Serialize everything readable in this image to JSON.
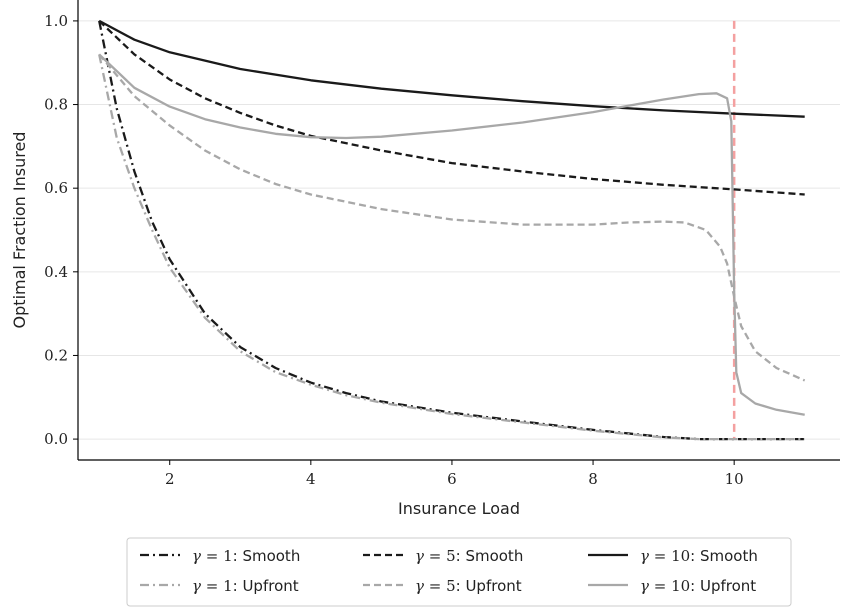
{
  "chart_data": {
    "type": "line",
    "xlabel": "Insurance Load",
    "ylabel": "Optimal Fraction Insured",
    "xlim": [
      0.7,
      11.5
    ],
    "ylim": [
      -0.05,
      1.05
    ],
    "x_ticks": [
      2,
      4,
      6,
      8,
      10
    ],
    "y_ticks": [
      0.0,
      0.2,
      0.4,
      0.6,
      0.8,
      1.0
    ],
    "x_tick_labels": [
      "2",
      "4",
      "6",
      "8",
      "10"
    ],
    "y_tick_labels": [
      "0.0",
      "0.2",
      "0.4",
      "0.6",
      "0.8",
      "1.0"
    ],
    "grid": "horizontal",
    "legend_position": "bottom, below plot",
    "reference_line": {
      "x": 10,
      "color": "#f4a0a0",
      "style": "dashed"
    },
    "series": [
      {
        "name": "γ = 1: Smooth",
        "color": "#1a1a1a",
        "dash": "dashdot",
        "x": [
          1,
          1.25,
          1.5,
          1.75,
          2,
          2.5,
          3,
          3.5,
          4,
          4.5,
          5,
          6,
          7,
          8,
          9,
          9.5,
          10,
          10.5,
          11
        ],
        "y": [
          1.0,
          0.79,
          0.64,
          0.52,
          0.43,
          0.3,
          0.22,
          0.17,
          0.135,
          0.11,
          0.09,
          0.063,
          0.042,
          0.022,
          0.005,
          0.0,
          0.0,
          0.0,
          0.0
        ]
      },
      {
        "name": "γ = 1: Upfront",
        "color": "#a8a8a8",
        "dash": "dashdot",
        "x": [
          1,
          1.25,
          1.5,
          1.75,
          2,
          2.5,
          3,
          3.5,
          4,
          4.5,
          5,
          6,
          7,
          8,
          9,
          9.5,
          10,
          10.5,
          11
        ],
        "y": [
          0.92,
          0.72,
          0.6,
          0.5,
          0.41,
          0.29,
          0.21,
          0.16,
          0.13,
          0.105,
          0.087,
          0.06,
          0.04,
          0.02,
          0.004,
          0.0,
          0.0,
          0.0,
          0.0
        ]
      },
      {
        "name": "γ = 5: Smooth",
        "color": "#1a1a1a",
        "dash": "dashed",
        "x": [
          1,
          1.5,
          2,
          2.5,
          3,
          3.5,
          4,
          5,
          6,
          7,
          8,
          9,
          10,
          11
        ],
        "y": [
          1.0,
          0.92,
          0.86,
          0.815,
          0.78,
          0.75,
          0.725,
          0.69,
          0.66,
          0.64,
          0.622,
          0.608,
          0.597,
          0.585
        ]
      },
      {
        "name": "γ = 5: Upfront",
        "color": "#a8a8a8",
        "dash": "dashed",
        "x": [
          1,
          1.5,
          2,
          2.5,
          3,
          3.5,
          4,
          5,
          6,
          7,
          8,
          8.5,
          9,
          9.3,
          9.6,
          9.8,
          9.9,
          10,
          10.1,
          10.3,
          10.6,
          11
        ],
        "y": [
          0.92,
          0.82,
          0.75,
          0.69,
          0.645,
          0.61,
          0.585,
          0.55,
          0.525,
          0.513,
          0.513,
          0.518,
          0.52,
          0.518,
          0.5,
          0.46,
          0.42,
          0.34,
          0.27,
          0.21,
          0.17,
          0.14
        ]
      },
      {
        "name": "γ = 10: Smooth",
        "color": "#1a1a1a",
        "dash": "solid",
        "x": [
          1,
          1.5,
          2,
          3,
          4,
          5,
          6,
          7,
          8,
          9,
          10,
          11
        ],
        "y": [
          1.0,
          0.955,
          0.925,
          0.885,
          0.858,
          0.838,
          0.822,
          0.808,
          0.796,
          0.786,
          0.778,
          0.771
        ]
      },
      {
        "name": "γ = 10: Upfront",
        "color": "#a8a8a8",
        "dash": "solid",
        "x": [
          1,
          1.5,
          2,
          2.5,
          3,
          3.5,
          4,
          4.5,
          5,
          6,
          7,
          8,
          8.5,
          9,
          9.5,
          9.75,
          9.9,
          9.96,
          10.0,
          10.03,
          10.1,
          10.3,
          10.6,
          11
        ],
        "y": [
          0.92,
          0.84,
          0.795,
          0.765,
          0.745,
          0.73,
          0.722,
          0.72,
          0.723,
          0.738,
          0.757,
          0.782,
          0.797,
          0.812,
          0.825,
          0.827,
          0.815,
          0.76,
          0.35,
          0.16,
          0.11,
          0.085,
          0.07,
          0.058
        ]
      }
    ]
  },
  "legend": {
    "items": [
      {
        "greek": "γ",
        "eq": " = ",
        "num": "1",
        "suffix": ": Smooth"
      },
      {
        "greek": "γ",
        "eq": " = ",
        "num": "5",
        "suffix": ": Smooth"
      },
      {
        "greek": "γ",
        "eq": " = ",
        "num": "10",
        "suffix": ": Smooth"
      },
      {
        "greek": "γ",
        "eq": " = ",
        "num": "1",
        "suffix": ": Upfront"
      },
      {
        "greek": "γ",
        "eq": " = ",
        "num": "5",
        "suffix": ": Upfront"
      },
      {
        "greek": "γ",
        "eq": " = ",
        "num": "10",
        "suffix": ": Upfront"
      }
    ]
  }
}
